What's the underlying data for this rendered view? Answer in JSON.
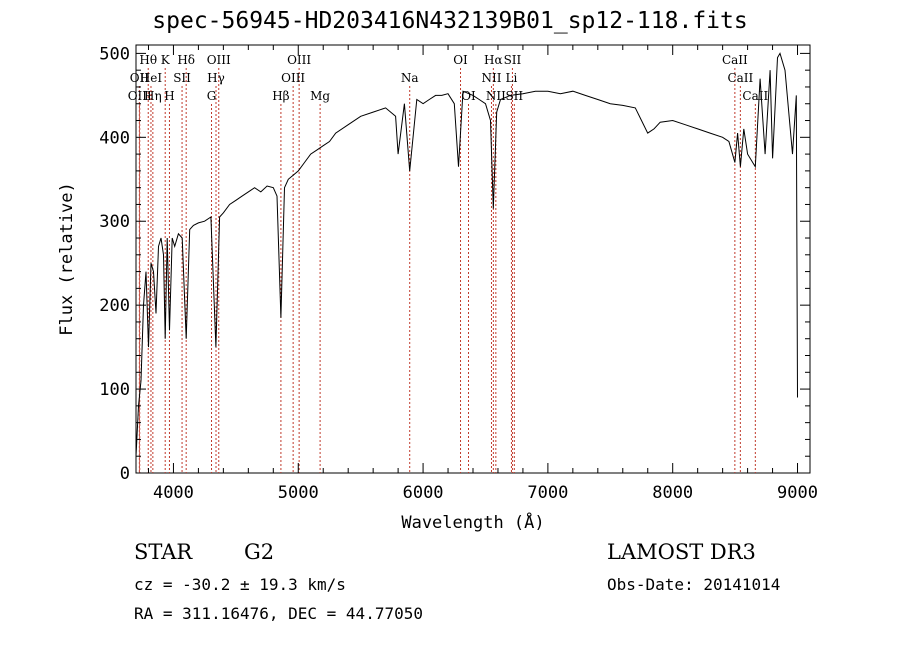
{
  "chart_data": {
    "type": "line",
    "title": "spec-56945-HD203416N432139B01_sp12-118.fits",
    "xlabel": "Wavelength (Å)",
    "ylabel": "Flux (relative)",
    "xlim": [
      3700,
      9100
    ],
    "ylim": [
      0,
      510
    ],
    "xticks": [
      4000,
      5000,
      6000,
      7000,
      8000,
      9000
    ],
    "yticks": [
      0,
      100,
      200,
      300,
      400,
      500
    ],
    "grid": false,
    "series": [
      {
        "x": [
          3700,
          3720,
          3740,
          3760,
          3780,
          3800,
          3820,
          3840,
          3860,
          3880,
          3900,
          3920,
          3934,
          3950,
          3968,
          3990,
          4010,
          4040,
          4070,
          4102,
          4130,
          4160,
          4200,
          4250,
          4300,
          4340,
          4370,
          4400,
          4450,
          4500,
          4550,
          4600,
          4650,
          4700,
          4750,
          4800,
          4830,
          4861,
          4890,
          4920,
          4960,
          5000,
          5050,
          5100,
          5150,
          5200,
          5250,
          5300,
          5400,
          5500,
          5600,
          5700,
          5780,
          5800,
          5850,
          5893,
          5950,
          6000,
          6050,
          6100,
          6150,
          6200,
          6250,
          6284,
          6320,
          6400,
          6450,
          6500,
          6540,
          6563,
          6590,
          6620,
          6700,
          6800,
          6900,
          7000,
          7100,
          7200,
          7300,
          7400,
          7500,
          7600,
          7700,
          7750,
          7800,
          7850,
          7900,
          8000,
          8100,
          8200,
          8300,
          8400,
          8450,
          8498,
          8520,
          8542,
          8570,
          8600,
          8662,
          8700,
          8740,
          8780,
          8800,
          8840,
          8860,
          8900,
          8960,
          8990,
          9000
        ],
        "values": [
          20,
          80,
          110,
          200,
          240,
          150,
          250,
          240,
          190,
          270,
          280,
          260,
          160,
          280,
          170,
          280,
          270,
          285,
          280,
          160,
          290,
          295,
          298,
          300,
          305,
          150,
          305,
          310,
          320,
          325,
          330,
          335,
          340,
          335,
          342,
          340,
          330,
          185,
          340,
          350,
          355,
          360,
          370,
          380,
          385,
          390,
          395,
          405,
          415,
          425,
          430,
          435,
          425,
          380,
          440,
          360,
          445,
          440,
          445,
          450,
          450,
          452,
          440,
          365,
          455,
          450,
          445,
          440,
          420,
          315,
          430,
          445,
          450,
          452,
          455,
          455,
          452,
          455,
          450,
          445,
          440,
          438,
          435,
          420,
          405,
          410,
          418,
          420,
          415,
          410,
          405,
          400,
          395,
          370,
          405,
          365,
          410,
          380,
          365,
          470,
          380,
          480,
          375,
          495,
          500,
          480,
          380,
          450,
          90
        ]
      }
    ],
    "line_markers": [
      {
        "label": "Hθ",
        "x": 3798,
        "row": 0
      },
      {
        "label": "OII",
        "x": 3727,
        "row": 1
      },
      {
        "label": "OIII",
        "x": 3730,
        "row": 2
      },
      {
        "label": "Hη",
        "x": 3835,
        "row": 2
      },
      {
        "label": "HeI",
        "x": 3820,
        "row": 1
      },
      {
        "label": "K",
        "x": 3934,
        "row": 0
      },
      {
        "label": "H",
        "x": 3968,
        "row": 2
      },
      {
        "label": "Hδ",
        "x": 4102,
        "row": 0
      },
      {
        "label": "SII",
        "x": 4069,
        "row": 1
      },
      {
        "label": "OIII",
        "x": 4363,
        "row": 0
      },
      {
        "label": "Hγ",
        "x": 4341,
        "row": 1
      },
      {
        "label": "G",
        "x": 4305,
        "row": 2
      },
      {
        "label": "Hβ",
        "x": 4861,
        "row": 2
      },
      {
        "label": "OIII",
        "x": 5007,
        "row": 0
      },
      {
        "label": "OIII",
        "x": 4959,
        "row": 1
      },
      {
        "label": "Mg",
        "x": 5175,
        "row": 2
      },
      {
        "label": "Na",
        "x": 5893,
        "row": 1
      },
      {
        "label": "OI",
        "x": 6300,
        "row": 0
      },
      {
        "label": "OI",
        "x": 6364,
        "row": 2
      },
      {
        "label": "Hα",
        "x": 6563,
        "row": 0
      },
      {
        "label": "SII",
        "x": 6716,
        "row": 0
      },
      {
        "label": "NII",
        "x": 6548,
        "row": 1
      },
      {
        "label": "Li",
        "x": 6708,
        "row": 1
      },
      {
        "label": "NII",
        "x": 6583,
        "row": 2
      },
      {
        "label": "SII",
        "x": 6731,
        "row": 2
      },
      {
        "label": "CaII",
        "x": 8498,
        "row": 0
      },
      {
        "label": "CaII",
        "x": 8542,
        "row": 1
      },
      {
        "label": "CaII",
        "x": 8662,
        "row": 2
      }
    ]
  },
  "info": {
    "object_class": "STAR",
    "subclass": "G2",
    "survey": "LAMOST DR3",
    "redshift": "cz = -30.2 ± 19.3 km/s",
    "obs_date": "Obs-Date: 20141014",
    "coords": "RA = 311.16476, DEC =  44.77050"
  },
  "colors": {
    "spectrum": "#000000",
    "line_marker": "#c0392b"
  }
}
